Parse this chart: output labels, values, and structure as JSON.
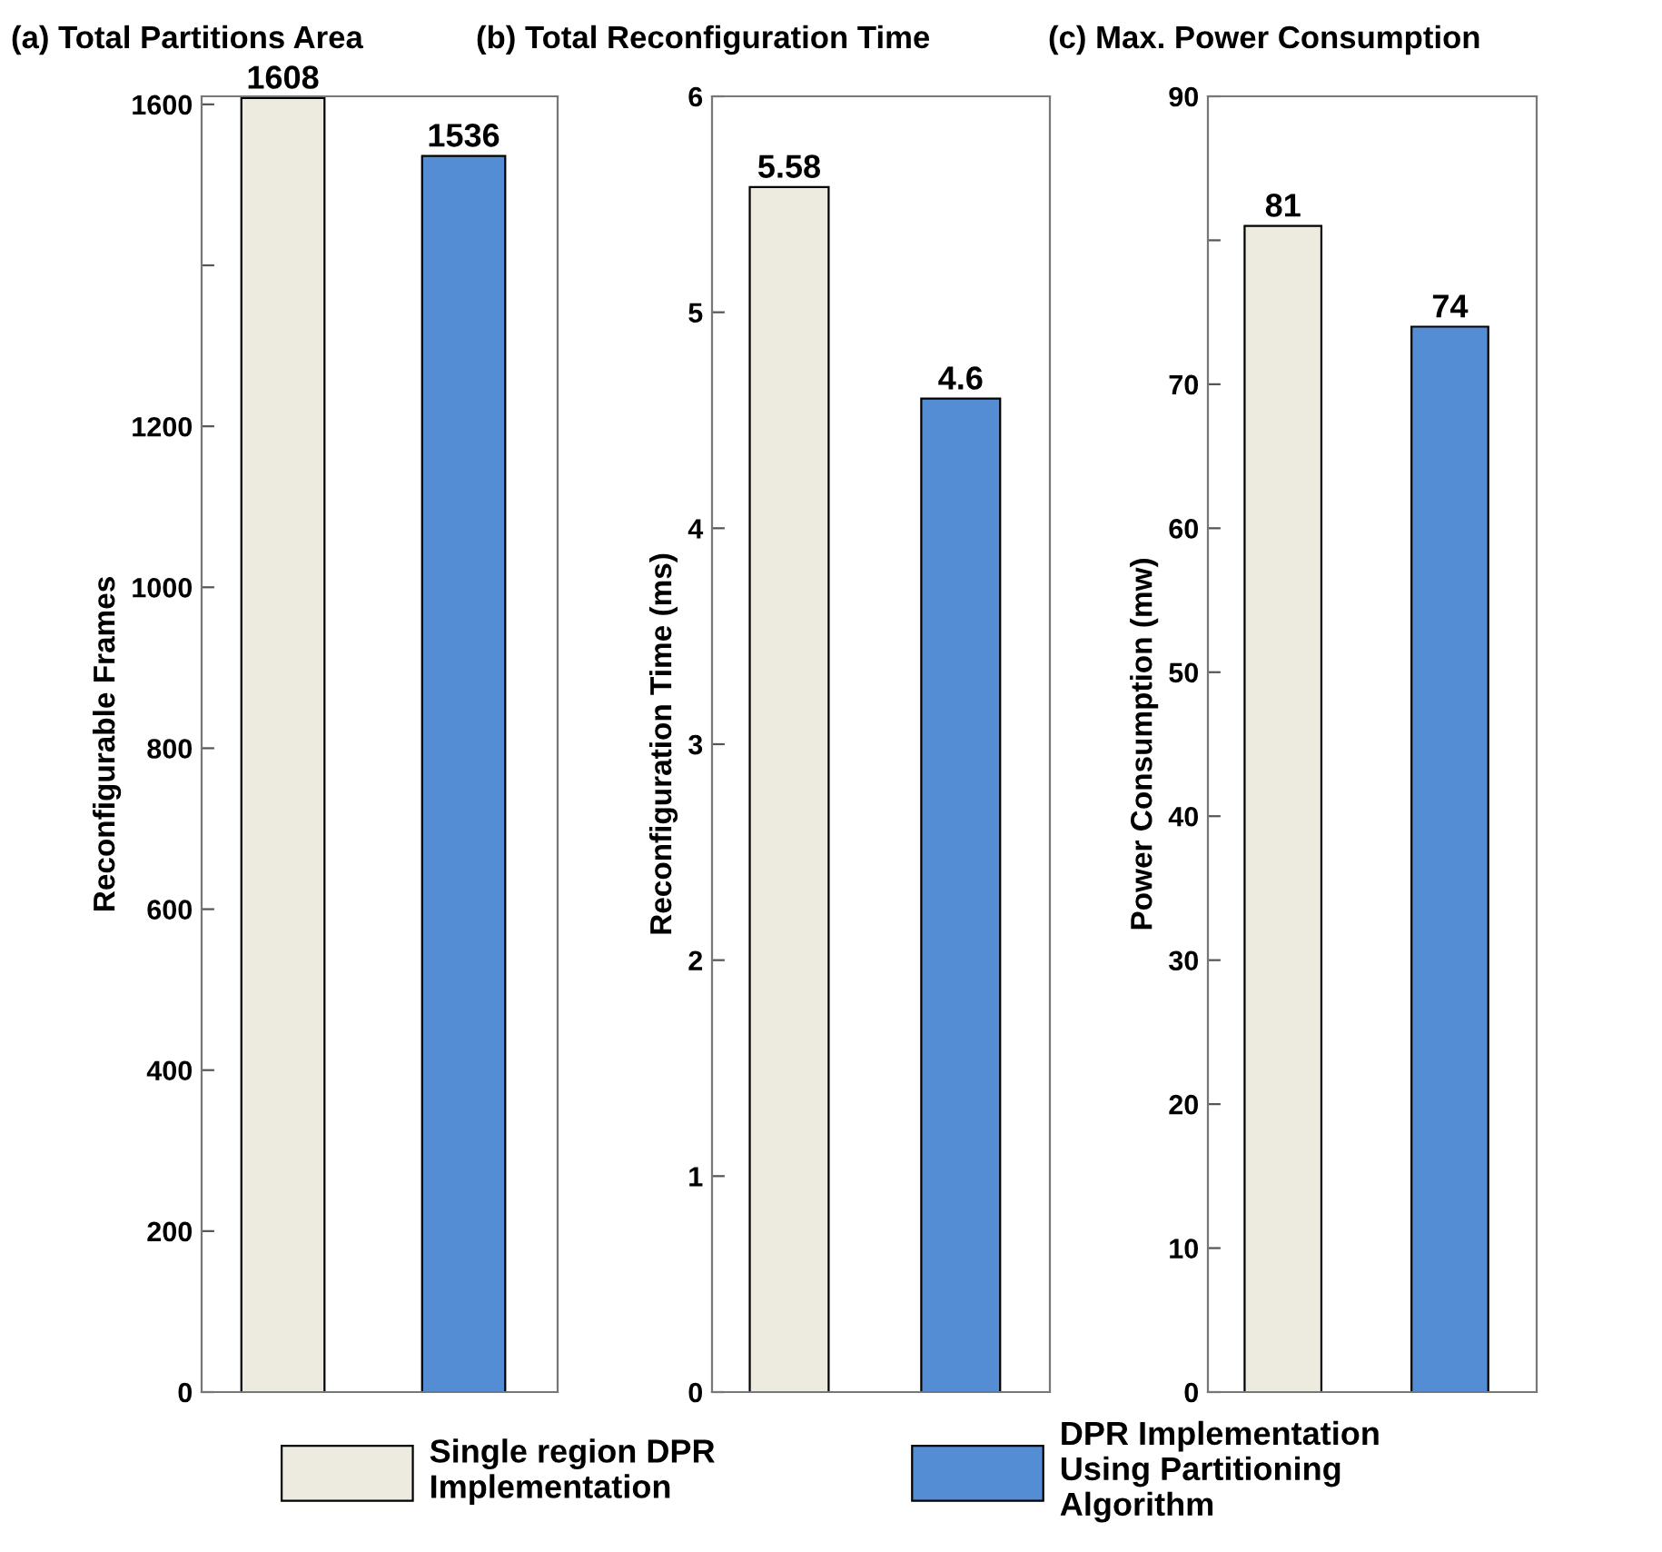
{
  "chart_data": [
    {
      "type": "bar",
      "title": "(a) Total Partitions Area",
      "ylabel": "Reconfigurable Frames",
      "categories": [
        null,
        null
      ],
      "series": [
        {
          "name": "Single region DPR\nImplementation",
          "color": "#edebe0",
          "values": [
            1608,
            null
          ]
        },
        {
          "name": "DPR Implementation\nUsing Partitioning\nAlgorithm",
          "color": "#548dd4",
          "values": [
            null,
            1536
          ]
        }
      ],
      "ylim": [
        0,
        1610
      ],
      "yticks": [
        0,
        200,
        400,
        600,
        800,
        1000,
        1200,
        {
          "value": 1400,
          "label": null
        },
        1600
      ],
      "data_labels": true,
      "legend": "bottom",
      "grid": false
    },
    {
      "type": "bar",
      "title": "(b) Total Reconfiguration Time",
      "ylabel": "Reconfiguration Time (ms)",
      "categories": [
        null,
        null
      ],
      "series": [
        {
          "color": "#edebe0",
          "values": [
            5.58,
            null
          ]
        },
        {
          "color": "#548dd4",
          "values": [
            null,
            4.6
          ]
        }
      ],
      "ylim": [
        0,
        6
      ],
      "yticks": [
        0,
        1,
        2,
        3,
        4,
        5,
        6
      ],
      "data_labels": true,
      "grid": false
    },
    {
      "type": "bar",
      "title": "(c) Max. Power Consumption",
      "ylabel": "Power Consumption (mw)",
      "categories": [
        null,
        null
      ],
      "series": [
        {
          "color": "#edebe0",
          "values": [
            81,
            null
          ]
        },
        {
          "color": "#548dd4",
          "values": [
            null,
            74
          ]
        }
      ],
      "ylim": [
        0,
        90
      ],
      "yticks": [
        0,
        10,
        20,
        30,
        40,
        50,
        60,
        70,
        {
          "value": 80,
          "label": null
        },
        90
      ],
      "data_labels": true,
      "grid": false
    }
  ]
}
